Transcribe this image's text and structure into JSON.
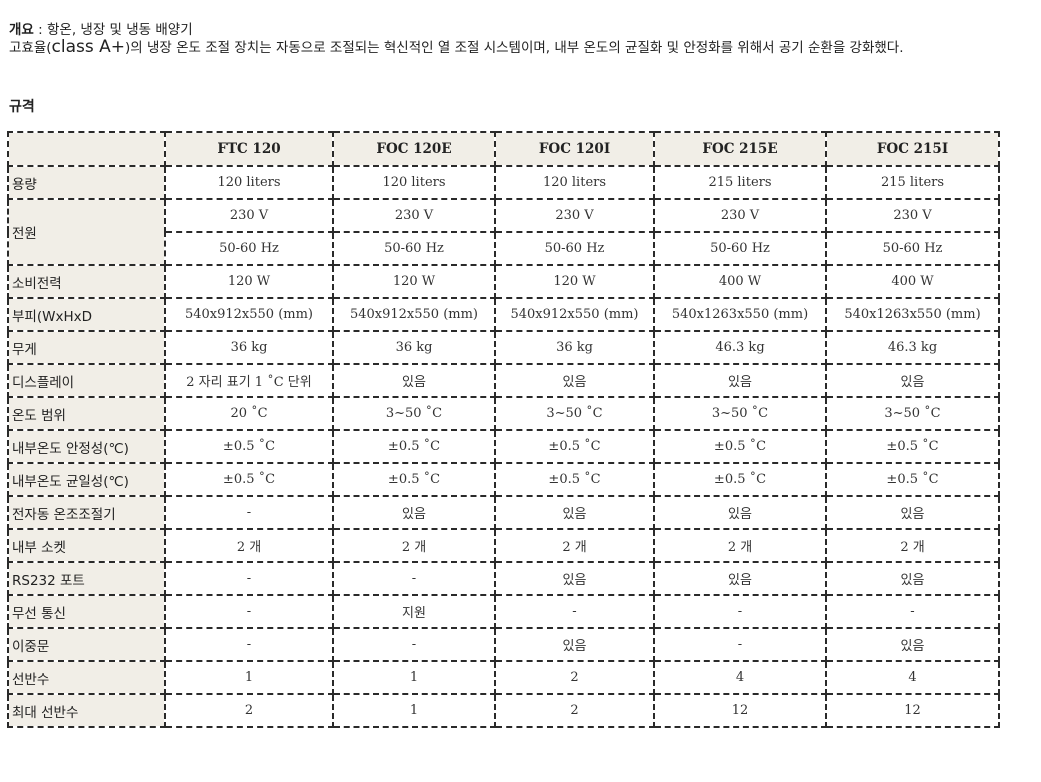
{
  "intro": {
    "label": "개요",
    "separator": " : ",
    "headline": "항온, 냉장 및 냉동 배양기",
    "desc_prefix": "고효율(",
    "desc_class": "class A+",
    "desc_suffix": ")의 냉장 온도 조절 장치는 자동으로 조절되는 혁신적인 열 조절 시스템이며, 내부 온도의 균질화 및 안정화를 위해서 공기 순환을 강화했다."
  },
  "spec_heading": "규격",
  "table": {
    "models": [
      "FTC 120",
      "FOC 120E",
      "FOC 120I",
      "FOC 215E",
      "FOC 215I"
    ],
    "rows": {
      "capacity": {
        "label": "용량",
        "values": [
          "120 liters",
          "120 liters",
          "120 liters",
          "215 liters",
          "215 liters"
        ]
      },
      "power": {
        "label": "전원",
        "voltage": [
          "230 V",
          "230 V",
          "230 V",
          "230 V",
          "230 V"
        ],
        "frequency": [
          "50-60 Hz",
          "50-60 Hz",
          "50-60 Hz",
          "50-60 Hz",
          "50-60 Hz"
        ]
      },
      "consumption": {
        "label": "소비전력",
        "values": [
          "120 W",
          "120 W",
          "120 W",
          "400 W",
          "400 W"
        ]
      },
      "dimensions": {
        "label": "부피(WxHxD",
        "values": [
          "540x912x550 (mm)",
          "540x912x550 (mm)",
          "540x912x550 (mm)",
          "540x1263x550 (mm)",
          "540x1263x550 (mm)"
        ]
      },
      "weight": {
        "label": "무게",
        "values": [
          "36 kg",
          "36 kg",
          "36 kg",
          "46.3 kg",
          "46.3 kg"
        ]
      },
      "display": {
        "label": "디스플레이",
        "values": [
          "2 자리 표기 1 ˚C 단위",
          "있음",
          "있음",
          "있음",
          "있음"
        ]
      },
      "temp_range": {
        "label": "온도 범위",
        "values": [
          "20 ˚C",
          "3~50 ˚C",
          "3~50 ˚C",
          "3~50 ˚C",
          "3~50 ˚C"
        ]
      },
      "stability": {
        "label": "내부온도 안정성(℃)",
        "values": [
          "±0.5 ˚C",
          "±0.5 ˚C",
          "±0.5 ˚C",
          "±0.5 ˚C",
          "±0.5 ˚C"
        ]
      },
      "uniformity": {
        "label": "내부온도 균일성(℃)",
        "values": [
          "±0.5 ˚C",
          "±0.5 ˚C",
          "±0.5 ˚C",
          "±0.5 ˚C",
          "±0.5 ˚C"
        ]
      },
      "thermostat": {
        "label": "전자동 온조조절기",
        "values": [
          "-",
          "있음",
          "있음",
          "있음",
          "있음"
        ]
      },
      "socket": {
        "label": "내부 소켓",
        "values": [
          "2 개",
          "2 개",
          "2 개",
          "2 개",
          "2 개"
        ]
      },
      "rs232": {
        "label": "RS232 포트",
        "values": [
          "-",
          "-",
          "있음",
          "있음",
          "있음"
        ]
      },
      "wireless": {
        "label": "무선 통신",
        "values": [
          "-",
          "지원",
          "-",
          "-",
          "-"
        ]
      },
      "double_door": {
        "label": "이중문",
        "values": [
          "-",
          "-",
          "있음",
          "-",
          "있음"
        ]
      },
      "shelves": {
        "label": "선반수",
        "values": [
          "1",
          "1",
          "2",
          "4",
          "4"
        ]
      },
      "max_shelves": {
        "label": "최대 선반수",
        "values": [
          "2",
          "1",
          "2",
          "12",
          "12"
        ]
      }
    }
  }
}
